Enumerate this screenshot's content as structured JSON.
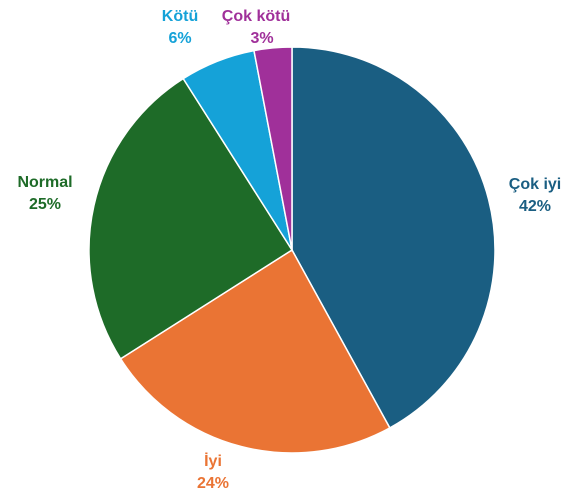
{
  "chart_data": {
    "type": "pie",
    "categories": [
      "Çok iyi",
      "İyi",
      "Normal",
      "Kötü",
      "Çok kötü"
    ],
    "values": [
      42,
      24,
      25,
      6,
      3
    ],
    "value_labels": [
      "42%",
      "24%",
      "25%",
      "6%",
      "3%"
    ],
    "colors": [
      "#1a5e82",
      "#ea7434",
      "#1e6b28",
      "#15a2d8",
      "#a0309a"
    ]
  }
}
